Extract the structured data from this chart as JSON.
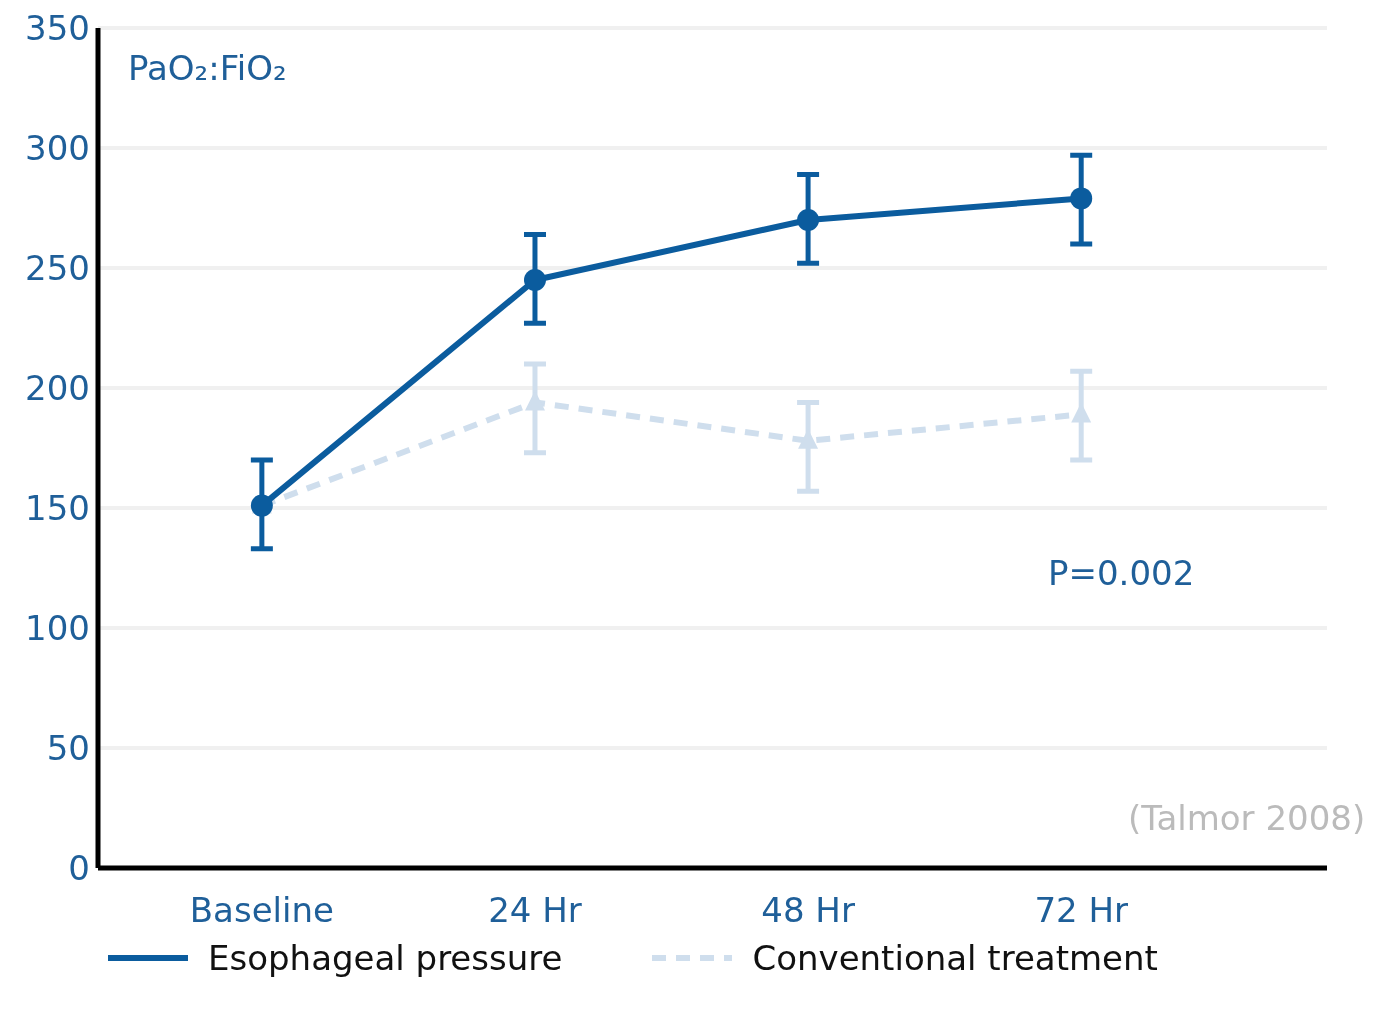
{
  "chart_data": {
    "type": "line",
    "ylabel": "PaO₂:FiO₂",
    "categories": [
      "Baseline",
      "24 Hr",
      "48 Hr",
      "72 Hr"
    ],
    "series": [
      {
        "name": "Esophageal pressure",
        "color": "#0b5c9e",
        "values": [
          151,
          245,
          270,
          279
        ],
        "errors": [
          [
            133,
            170
          ],
          [
            227,
            264
          ],
          [
            252,
            289
          ],
          [
            260,
            297
          ]
        ],
        "marker": "circle",
        "line_style": "solid"
      },
      {
        "name": "Conventional treatment",
        "color": "#cfdeed",
        "values": [
          151,
          194,
          178,
          189
        ],
        "errors": [
          null,
          [
            173,
            210
          ],
          [
            157,
            194
          ],
          [
            170,
            207
          ]
        ],
        "marker": "triangle",
        "line_style": "dashed"
      }
    ],
    "ylim": [
      0,
      350
    ],
    "yticks": [
      0,
      50,
      100,
      150,
      200,
      250,
      300,
      350
    ],
    "grid": "y",
    "legend": "bottom",
    "annotations": [
      "P=0.002",
      "(Talmor 2008)"
    ]
  }
}
